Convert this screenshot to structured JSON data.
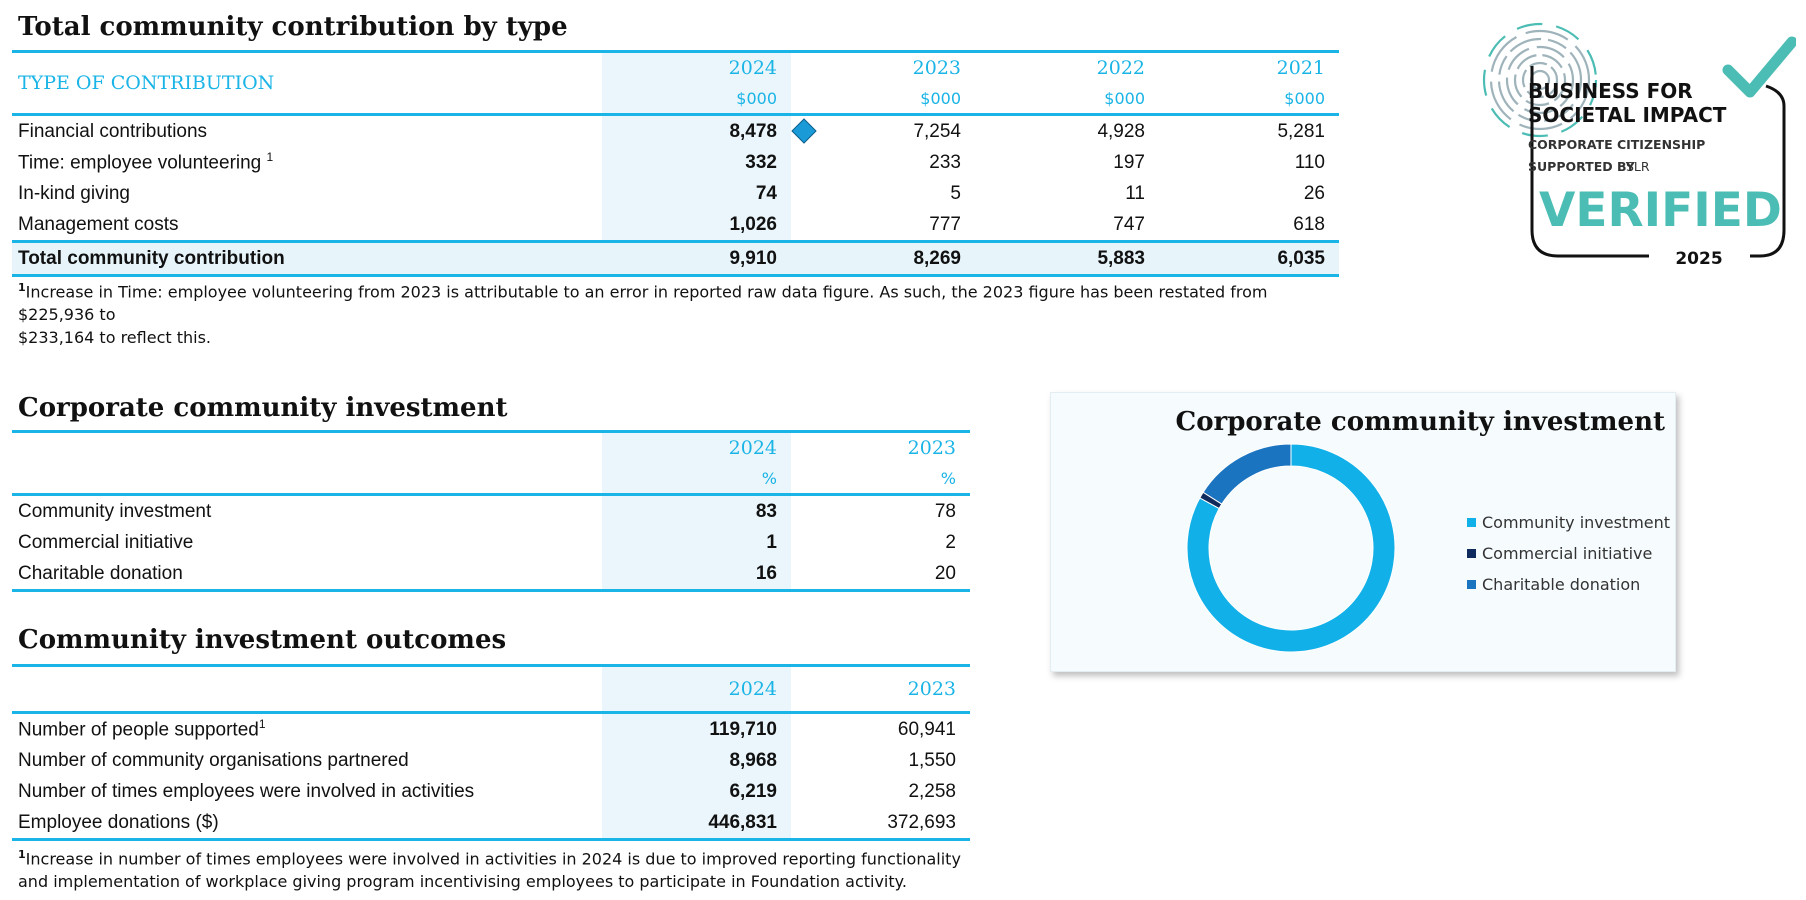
{
  "contribution": {
    "title": "Total community contribution by type",
    "type_header": "TYPE OF CONTRIBUTION",
    "years": [
      "2024",
      "2023",
      "2022",
      "2021"
    ],
    "unit": "$000",
    "rows": [
      {
        "label": "Financial contributions",
        "sup": "",
        "values": [
          "8,478",
          "7,254",
          "4,928",
          "5,281"
        ]
      },
      {
        "label": "Time: employee volunteering",
        "sup": "1",
        "values": [
          "332",
          "233",
          "197",
          "110"
        ]
      },
      {
        "label": "In-kind giving",
        "sup": "",
        "values": [
          "74",
          "5",
          "11",
          "26"
        ]
      },
      {
        "label": "Management costs",
        "sup": "",
        "values": [
          "1,026",
          "777",
          "747",
          "618"
        ]
      }
    ],
    "total": {
      "label": "Total community contribution",
      "values": [
        "9,910",
        "8,269",
        "5,883",
        "6,035"
      ]
    },
    "footnote_mark": "1",
    "footnote_line1": "Increase in Time: employee volunteering from 2023 is attributable to an error in reported raw data figure. As such, the 2023 figure has been restated from $225,936 to",
    "footnote_line2": "$233,164 to reflect this."
  },
  "badge": {
    "line1": "BUSINESS FOR",
    "line2": "SOCIETAL IMPACT",
    "line3": "CORPORATE CITIZENSHIP",
    "line4": "SUPPORTED BY",
    "line4_brand": "SLR",
    "verified": "VERIFIED",
    "year": "2025"
  },
  "investment": {
    "title": "Corporate community investment",
    "years": [
      "2024",
      "2023"
    ],
    "unit": "%",
    "rows": [
      {
        "label": "Community investment",
        "values": [
          "83",
          "78"
        ]
      },
      {
        "label": "Commercial initiative",
        "values": [
          "1",
          "2"
        ]
      },
      {
        "label": "Charitable donation",
        "values": [
          "16",
          "20"
        ]
      }
    ]
  },
  "outcomes": {
    "title": "Community investment outcomes",
    "years": [
      "2024",
      "2023"
    ],
    "rows": [
      {
        "label": "Number of people supported",
        "sup": "1",
        "values": [
          "119,710",
          "60,941"
        ]
      },
      {
        "label": "Number of community organisations partnered",
        "sup": "",
        "values": [
          "8,968",
          "1,550"
        ]
      },
      {
        "label": "Number of times employees were involved in activities",
        "sup": "",
        "values": [
          "6,219",
          "2,258"
        ]
      },
      {
        "label": "Employee donations ($)",
        "sup": "",
        "values": [
          "446,831",
          "372,693"
        ]
      }
    ],
    "footnote_mark": "1",
    "footnote_line1": "Increase in number of times employees were involved in activities in 2024 is due to improved reporting functionality",
    "footnote_line2": "and implementation of workplace giving program incentivising employees to participate in Foundation activity."
  },
  "colors": {
    "accent": "#1ab4e6",
    "community_investment": "#12b0e8",
    "commercial_initiative": "#0f2a5c",
    "charitable_donation": "#1b74c0",
    "badge_teal": "#4cbdb4",
    "marker": "#1a9ad6"
  },
  "chart_data": {
    "type": "pie",
    "variant": "donut",
    "title": "Corporate community investment",
    "categories": [
      "Community investment",
      "Commercial initiative",
      "Charitable donation"
    ],
    "values": [
      83,
      1,
      16
    ],
    "unit": "%",
    "legend_position": "right"
  }
}
